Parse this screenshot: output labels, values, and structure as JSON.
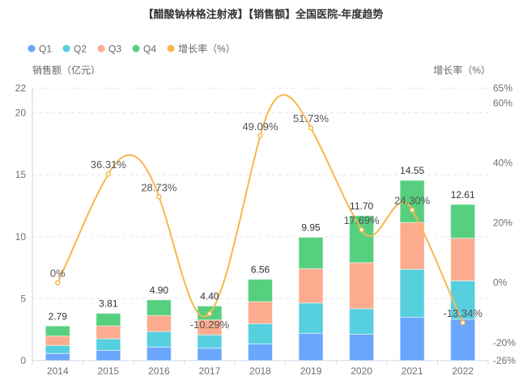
{
  "chart_data": {
    "type": "bar",
    "title": "【醋酸钠林格注射液】【销售额】全国医院-年度趋势",
    "categories": [
      "2014",
      "2015",
      "2016",
      "2017",
      "2018",
      "2019",
      "2020",
      "2021",
      "2022"
    ],
    "series": [
      {
        "name": "Q1",
        "type": "bar",
        "stack": "total",
        "color": "#6aa6fb",
        "values": [
          0.57,
          0.83,
          1.09,
          1.0,
          1.35,
          2.2,
          2.13,
          3.5,
          3.33
        ]
      },
      {
        "name": "Q2",
        "type": "bar",
        "stack": "total",
        "color": "#56cfdf",
        "values": [
          0.65,
          0.93,
          1.25,
          1.07,
          1.63,
          2.45,
          2.06,
          3.87,
          3.11
        ]
      },
      {
        "name": "Q3",
        "type": "bar",
        "stack": "total",
        "color": "#fcab8e",
        "values": [
          0.76,
          1.04,
          1.3,
          1.21,
          1.78,
          2.77,
          3.72,
          3.78,
          3.44
        ]
      },
      {
        "name": "Q4",
        "type": "bar",
        "stack": "total",
        "color": "#56d07f",
        "values": [
          0.81,
          1.01,
          1.26,
          1.12,
          1.8,
          2.53,
          3.79,
          3.4,
          2.73
        ]
      },
      {
        "name": "增长率（%）",
        "type": "line",
        "axis": "right",
        "smooth": true,
        "color": "#f7b74d",
        "values": [
          0,
          36.31,
          28.73,
          -10.29,
          49.09,
          51.73,
          17.69,
          24.3,
          -13.34
        ]
      }
    ],
    "totals": [
      "2.79",
      "3.81",
      "4.90",
      "4.40",
      "6.56",
      "9.95",
      "11.70",
      "14.55",
      "12.61"
    ],
    "growth_labels": [
      "0%",
      "36.31%",
      "28.73%",
      "-10.29%",
      "49.09%",
      "51.73%",
      "17.69%",
      "24.30%",
      "-13.34%"
    ],
    "ylabel": "销售额（亿元）",
    "ylabel_right": "增长率（%）",
    "ylim": [
      0,
      22
    ],
    "yticks": [
      "0",
      "5",
      "10",
      "15",
      "20",
      "22"
    ],
    "ylim_right": [
      -26,
      65
    ],
    "yticks_right": [
      "-26%",
      "-20%",
      "0%",
      "20%",
      "40%",
      "60%",
      "65%"
    ],
    "grid": true,
    "legend_position": "top-left"
  }
}
